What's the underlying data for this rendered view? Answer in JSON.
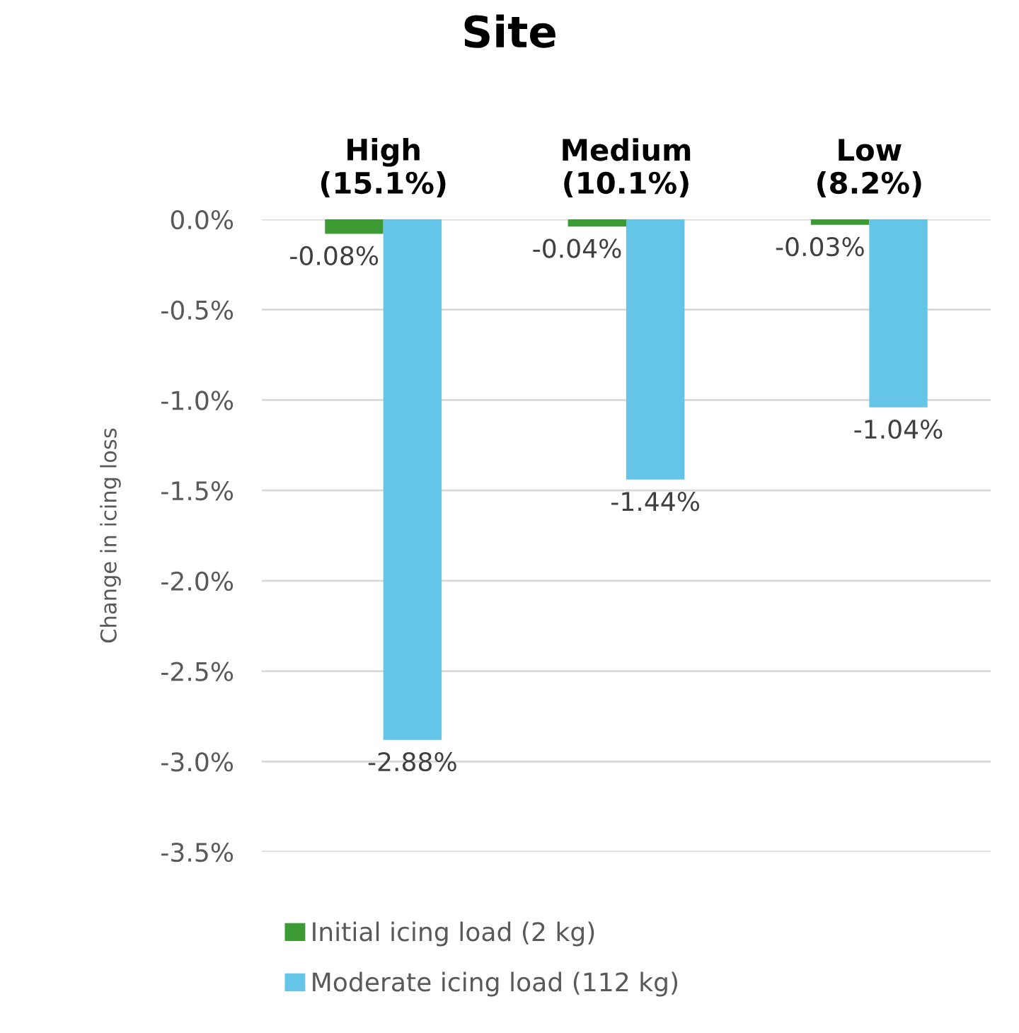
{
  "chart_data": {
    "type": "bar",
    "title": "Site",
    "ylabel": "Change in icing loss",
    "categories": [
      "High\n(15.1%)",
      "Medium\n(10.1%)",
      "Low\n(8.2%)"
    ],
    "series": [
      {
        "name": "Initial icing load (2 kg)",
        "color": "#3c9b34",
        "values": [
          -0.08,
          -0.04,
          -0.03
        ],
        "value_labels": [
          "-0.08%",
          "-0.04%",
          "-0.03%"
        ]
      },
      {
        "name": "Moderate icing load (112 kg)",
        "color": "#65c5e9",
        "values": [
          -2.88,
          -1.44,
          -1.04
        ],
        "value_labels": [
          "-2.88%",
          "-1.44%",
          "-1.04%"
        ]
      }
    ],
    "ylim": [
      -3.5,
      0
    ],
    "yticks": [
      {
        "value": 0,
        "label": "0.0%"
      },
      {
        "value": -0.5,
        "label": "-0.5%"
      },
      {
        "value": -1,
        "label": "-1.0%"
      },
      {
        "value": -1.5,
        "label": "-1.5%"
      },
      {
        "value": -2,
        "label": "-2.0%"
      },
      {
        "value": -2.5,
        "label": "-2.5%"
      },
      {
        "value": -3,
        "label": "-3.0%"
      },
      {
        "value": -3.5,
        "label": "-3.5%"
      }
    ],
    "grid": "y",
    "legend": "bottom"
  }
}
